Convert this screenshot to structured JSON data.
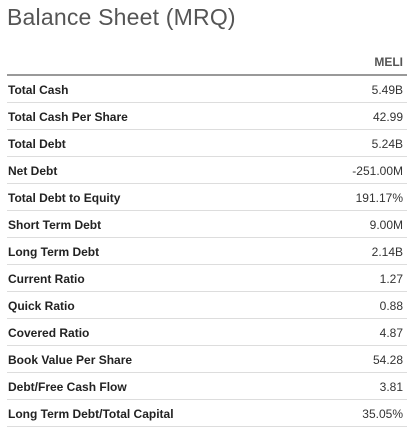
{
  "title": "Balance Sheet (MRQ)",
  "column_header": "MELI",
  "rows": [
    {
      "label": "Total Cash",
      "value": "5.49B"
    },
    {
      "label": "Total Cash Per Share",
      "value": "42.99"
    },
    {
      "label": "Total Debt",
      "value": "5.24B"
    },
    {
      "label": "Net Debt",
      "value": "-251.00M"
    },
    {
      "label": "Total Debt to Equity",
      "value": "191.17%"
    },
    {
      "label": "Short Term Debt",
      "value": "9.00M"
    },
    {
      "label": "Long Term Debt",
      "value": "2.14B"
    },
    {
      "label": "Current Ratio",
      "value": "1.27"
    },
    {
      "label": "Quick Ratio",
      "value": "0.88"
    },
    {
      "label": "Covered Ratio",
      "value": "4.87"
    },
    {
      "label": "Book Value Per Share",
      "value": "54.28"
    },
    {
      "label": "Debt/Free Cash Flow",
      "value": "3.81"
    },
    {
      "label": "Long Term Debt/Total Capital",
      "value": "35.05%"
    }
  ]
}
